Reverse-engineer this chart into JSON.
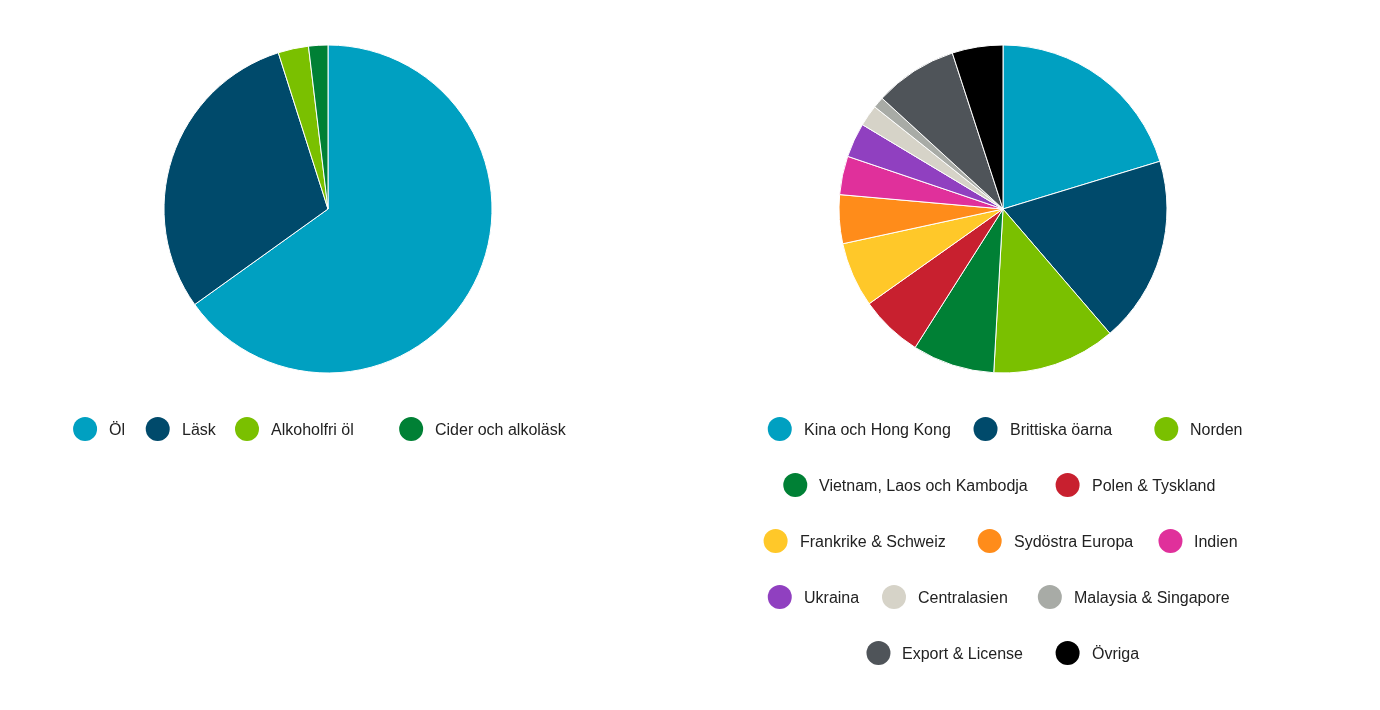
{
  "chart_data": [
    {
      "type": "pie",
      "categories": [
        "Öl",
        "Läsk",
        "Alkoholfri öl",
        "Cider och alkoläsk"
      ],
      "values": [
        65.1,
        30.0,
        3.0,
        1.9
      ],
      "colors": [
        "#00a0c1",
        "#004a6b",
        "#7ac000",
        "#008035"
      ],
      "legend": "bottom"
    },
    {
      "type": "pie",
      "categories": [
        "Kina och Hong Kong",
        "Brittiska öarna",
        "Norden",
        "Vietnam, Laos och Kambodja",
        "Polen & Tyskland",
        "Frankrike & Schweiz",
        "Sydöstra Europa",
        "Indien",
        "Ukraina",
        "Centralasien",
        "Malaysia & Singapore",
        "Export & License",
        "Övriga"
      ],
      "values": [
        20.3,
        18.4,
        12.2,
        8.1,
        6.2,
        6.4,
        4.8,
        3.8,
        3.4,
        2.1,
        1.1,
        8.2,
        5.0
      ],
      "colors": [
        "#00a0c1",
        "#004a6b",
        "#7ac000",
        "#008035",
        "#c8202f",
        "#ffc829",
        "#ff8c1a",
        "#e0309b",
        "#9040c0",
        "#d6d3c8",
        "#a8aba6",
        "#4f5459",
        "#000000"
      ],
      "legend": "bottom"
    }
  ]
}
